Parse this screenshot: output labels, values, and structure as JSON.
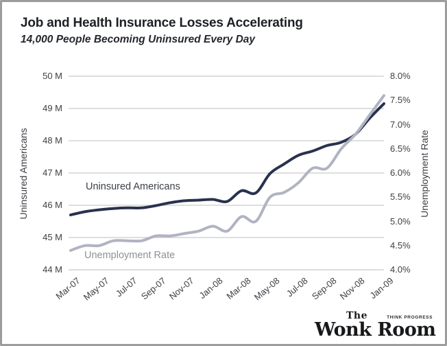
{
  "header": {
    "title": "Job and Health Insurance Losses Accelerating",
    "subtitle": "14,000 People Becoming Uninsured Every Day"
  },
  "chart_data": {
    "type": "line",
    "title": "Job and Health Insurance Losses Accelerating",
    "subtitle": "14,000 People Becoming Uninsured Every Day",
    "x": [
      "Mar-07",
      "Apr-07",
      "May-07",
      "Jun-07",
      "Jul-07",
      "Aug-07",
      "Sep-07",
      "Oct-07",
      "Nov-07",
      "Dec-07",
      "Jan-08",
      "Feb-08",
      "Mar-08",
      "Apr-08",
      "May-08",
      "Jun-08",
      "Jul-08",
      "Aug-08",
      "Sep-08",
      "Oct-08",
      "Nov-08",
      "Dec-08",
      "Jan-09"
    ],
    "x_tick_labels": [
      "Mar-07",
      "May-07",
      "Jul-07",
      "Sep-07",
      "Nov-07",
      "Jan-08",
      "Mar-08",
      "May-08",
      "Jul-08",
      "Sep-08",
      "Nov-08",
      "Jan-09"
    ],
    "x_tick_every": 2,
    "series": [
      {
        "name": "Uninsured Americans",
        "axis": "left",
        "color": "#28324e",
        "width": 4,
        "values": [
          45.7,
          45.8,
          45.86,
          45.9,
          45.92,
          45.92,
          45.99,
          46.08,
          46.14,
          46.16,
          46.18,
          46.12,
          46.45,
          46.38,
          46.98,
          47.28,
          47.55,
          47.68,
          47.85,
          47.95,
          48.2,
          48.7,
          49.15
        ]
      },
      {
        "name": "Unemployment Rate",
        "axis": "right",
        "color": "#b1b3c2",
        "width": 4,
        "values": [
          4.4,
          4.5,
          4.5,
          4.6,
          4.6,
          4.6,
          4.7,
          4.7,
          4.75,
          4.8,
          4.9,
          4.8,
          5.1,
          5.0,
          5.5,
          5.6,
          5.8,
          6.1,
          6.1,
          6.5,
          6.8,
          7.2,
          7.6
        ]
      }
    ],
    "left_axis": {
      "label": "Uninsured Americans",
      "min": 44,
      "max": 50,
      "tick_values": [
        50,
        49,
        48,
        47,
        46,
        45,
        44
      ],
      "ticks": [
        "50 M",
        "49 M",
        "48 M",
        "47 M",
        "46 M",
        "45 M",
        "44 M"
      ]
    },
    "right_axis": {
      "label": "Unemployment Rate",
      "min": 4.0,
      "max": 8.0,
      "tick_values": [
        8.0,
        7.5,
        7.0,
        6.5,
        6.0,
        5.5,
        5.0,
        4.5,
        4.0
      ],
      "ticks": [
        "8.0%",
        "7.5%",
        "7.0%",
        "6.5%",
        "6.0%",
        "5.5%",
        "5.0%",
        "4.5%",
        "4.0%"
      ]
    },
    "grid": "horizontal",
    "grid_color": "#c9c9c9",
    "legend_position": "inline-labels"
  },
  "footer": {
    "logo": {
      "the": "The",
      "main": "Wonk Room",
      "small": "THINK PROGRESS"
    }
  }
}
